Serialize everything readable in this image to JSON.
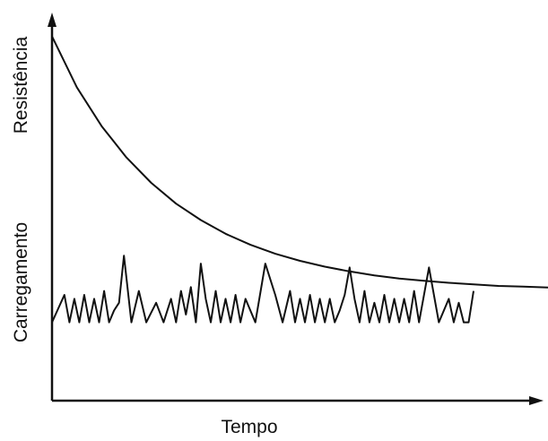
{
  "chart_data": {
    "type": "line",
    "xlabel": "Tempo",
    "ylabel_upper": "Resistência",
    "ylabel_lower": "Carregamento",
    "xlim": [
      0,
      100
    ],
    "ylim": [
      0,
      100
    ],
    "grid": false,
    "series": [
      {
        "key": "resistencia",
        "shape": "exponential-decay",
        "x": [
          0,
          5,
          10,
          15,
          20,
          25,
          30,
          35,
          40,
          45,
          50,
          55,
          60,
          65,
          70,
          75,
          80,
          85,
          90,
          95,
          100
        ],
        "y": [
          93,
          80,
          70.1,
          62.1,
          55.6,
          50.3,
          46.1,
          42.6,
          39.8,
          37.5,
          35.7,
          34.2,
          33.0,
          32.0,
          31.2,
          30.6,
          30.1,
          29.7,
          29.3,
          29.1,
          28.9
        ]
      },
      {
        "key": "carregamento",
        "shape": "random-fluctuation",
        "x": [
          0,
          2.5,
          3.5,
          4.5,
          5.5,
          6.5,
          7.5,
          8.5,
          9.5,
          10.5,
          11.5,
          12.5,
          13.5,
          14.5,
          16,
          17.5,
          19,
          21,
          22.5,
          24,
          25,
          26,
          27,
          28,
          29,
          30,
          31,
          32,
          33,
          34,
          35,
          36,
          37,
          38,
          39,
          41,
          43,
          45,
          46.5,
          48,
          49,
          50,
          51,
          52,
          53,
          54,
          55,
          56,
          57,
          58,
          59,
          60,
          61,
          62,
          63,
          64,
          65,
          66,
          67,
          68,
          69,
          70,
          71,
          72,
          73,
          74,
          76,
          78,
          80,
          81,
          82,
          83,
          84,
          85
        ],
        "y": [
          20,
          27,
          20,
          26,
          20,
          27,
          20,
          26,
          20,
          28,
          20,
          23,
          25,
          37,
          20,
          28,
          20,
          25,
          20,
          26,
          20,
          28,
          22,
          29,
          20,
          35,
          26,
          20,
          28,
          20,
          26,
          20,
          27,
          20,
          26,
          20,
          35,
          27,
          20,
          28,
          20,
          26,
          20,
          27,
          20,
          26,
          20,
          26,
          20,
          23,
          27,
          34,
          26,
          20,
          28,
          20,
          25,
          20,
          27,
          20,
          26,
          20,
          26,
          20,
          28,
          20,
          34,
          20,
          26,
          20,
          25,
          20,
          20,
          28
        ]
      }
    ],
    "colors": {
      "line": "#111111",
      "axis": "#111111",
      "background": "#ffffff"
    }
  }
}
